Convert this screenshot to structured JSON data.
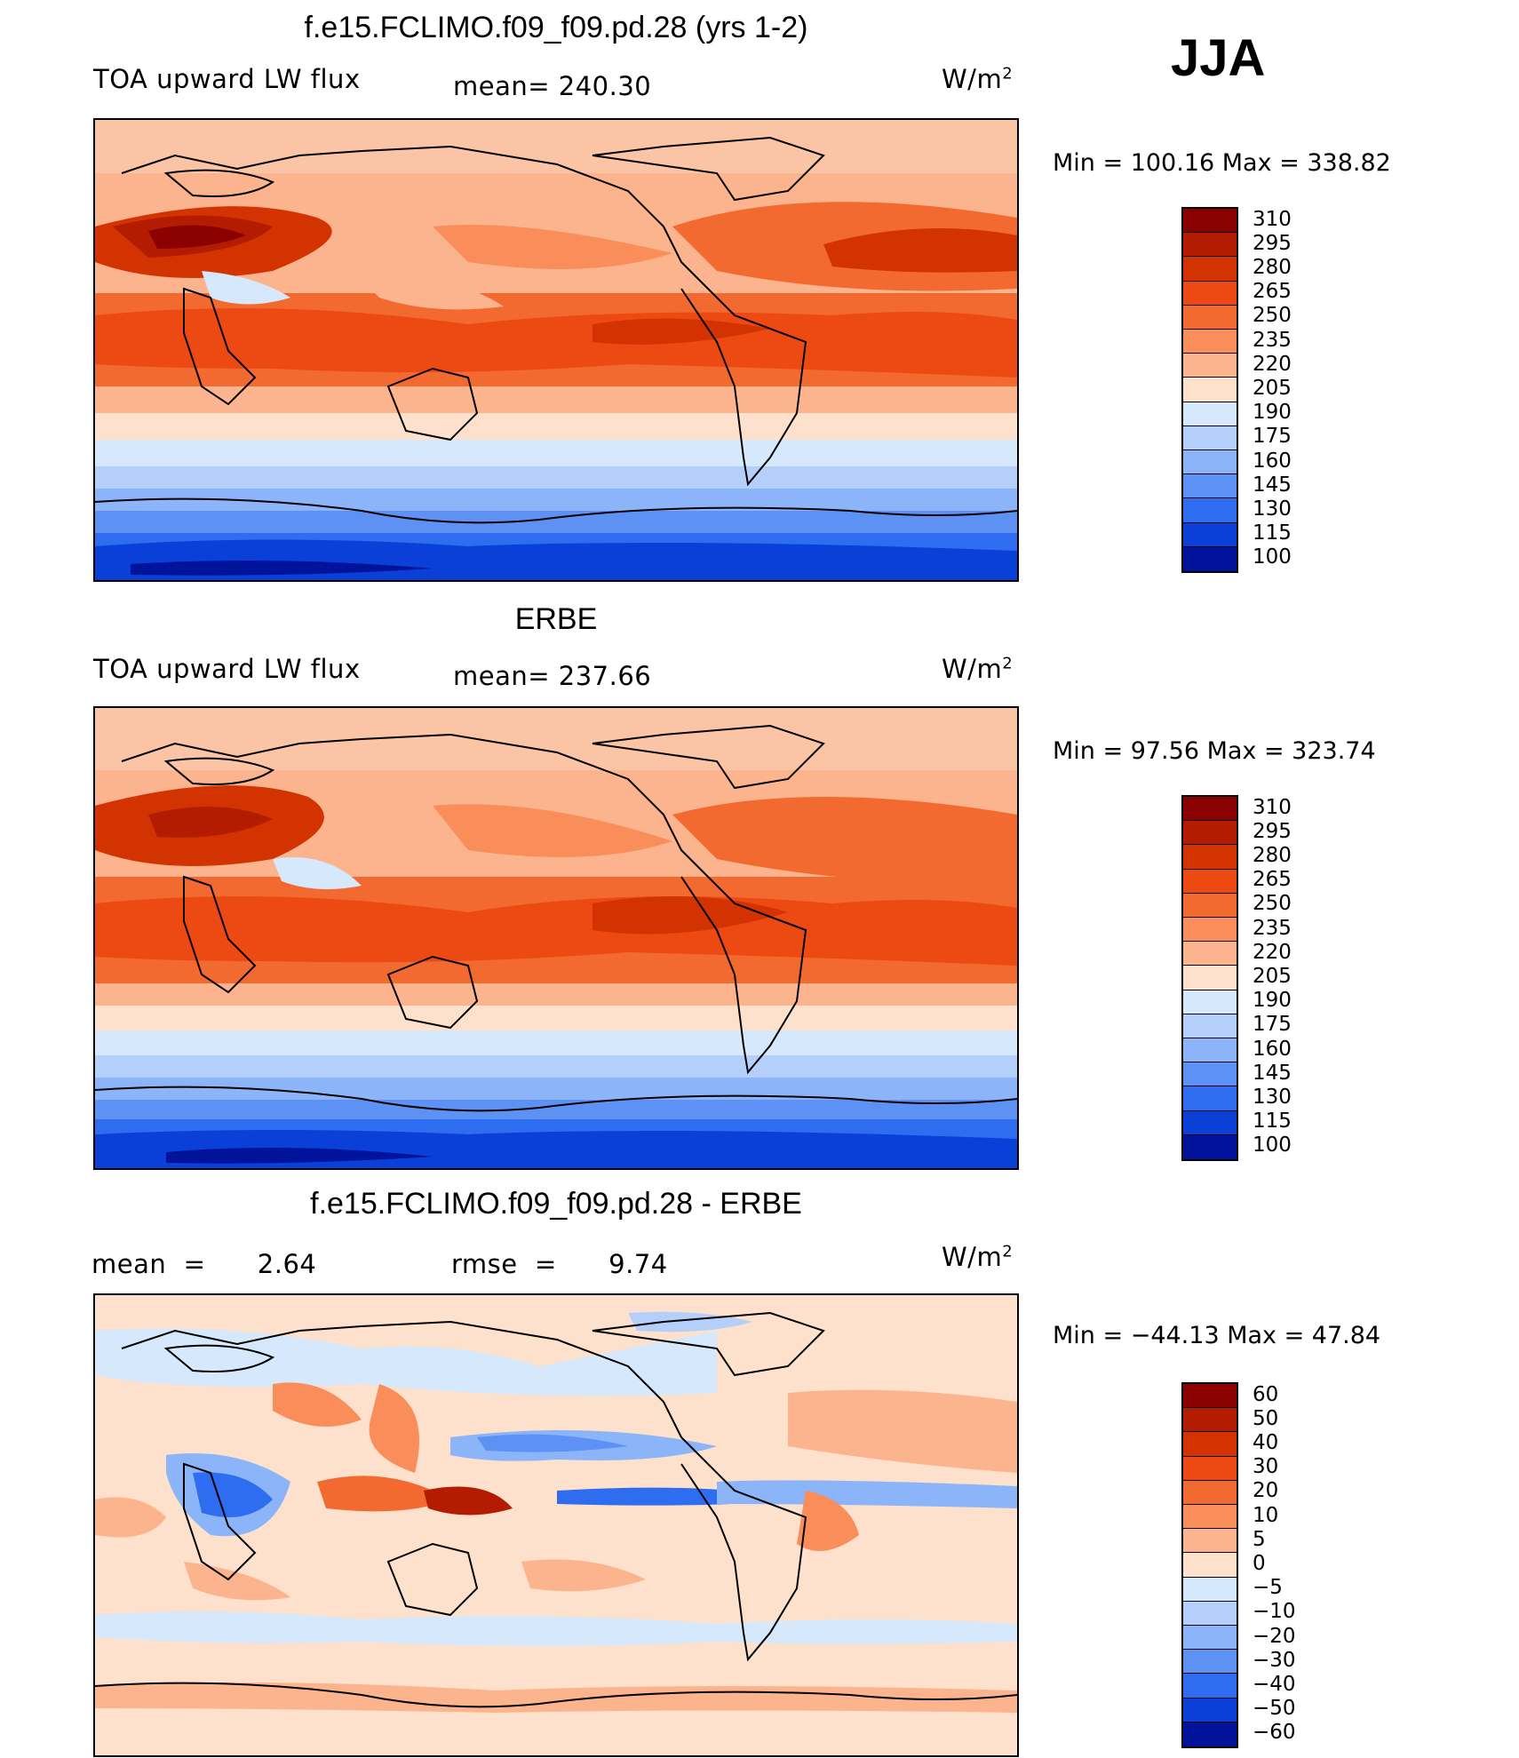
{
  "season": "JJA",
  "units_label": "W/m",
  "units_exp": "2",
  "chart_data": [
    {
      "type": "heatmap",
      "title": "f.e15.FCLIMO.f09_f09.pd.28 (yrs 1-2)",
      "left_label": "TOA upward LW flux",
      "mean_label": "mean=  240.30",
      "mean": 240.3,
      "min": 100.16,
      "max": 338.82,
      "minmax_label": "Min  =  100.16  Max  =  338.82",
      "levels": [
        "310",
        "295",
        "280",
        "265",
        "250",
        "235",
        "220",
        "205",
        "190",
        "175",
        "160",
        "145",
        "130",
        "115",
        "100"
      ],
      "colors": [
        "#8b0000",
        "#b31c00",
        "#d33300",
        "#ec4a12",
        "#f36a30",
        "#f98e5b",
        "#fcb48e",
        "#fde1cc",
        "#d6e8fb",
        "#b4cffa",
        "#8cb4f8",
        "#5d92f4",
        "#2e6cf0",
        "#0a3fd8",
        "#00139a"
      ]
    },
    {
      "type": "heatmap",
      "title": "ERBE",
      "left_label": "TOA upward LW flux",
      "mean_label": "mean=  237.66",
      "mean": 237.66,
      "min": 97.56,
      "max": 323.74,
      "minmax_label": "Min  =   97.56  Max  =  323.74",
      "levels": [
        "310",
        "295",
        "280",
        "265",
        "250",
        "235",
        "220",
        "205",
        "190",
        "175",
        "160",
        "145",
        "130",
        "115",
        "100"
      ],
      "colors": [
        "#8b0000",
        "#b31c00",
        "#d33300",
        "#ec4a12",
        "#f36a30",
        "#f98e5b",
        "#fcb48e",
        "#fde1cc",
        "#d6e8fb",
        "#b4cffa",
        "#8cb4f8",
        "#5d92f4",
        "#2e6cf0",
        "#0a3fd8",
        "#00139a"
      ]
    },
    {
      "type": "heatmap",
      "title": "f.e15.FCLIMO.f09_f09.pd.28 - ERBE",
      "left_label": "mean  =      2.64",
      "mean": 2.64,
      "rmse_label": "rmse  =      9.74",
      "rmse": 9.74,
      "min": -44.13,
      "max": 47.84,
      "minmax_label": "Min  = −44.13  Max  =    47.84",
      "levels": [
        "60",
        "50",
        "40",
        "30",
        "20",
        "10",
        "5",
        "0",
        "−5",
        "−10",
        "−20",
        "−30",
        "−40",
        "−50",
        "−60"
      ],
      "colors": [
        "#8b0000",
        "#b31c00",
        "#d33300",
        "#ec4a12",
        "#f36a30",
        "#f98e5b",
        "#fcb48e",
        "#fde1cc",
        "#d6e8fb",
        "#b4cffa",
        "#8cb4f8",
        "#5d92f4",
        "#2e6cf0",
        "#0a3fd8",
        "#00139a"
      ]
    }
  ]
}
